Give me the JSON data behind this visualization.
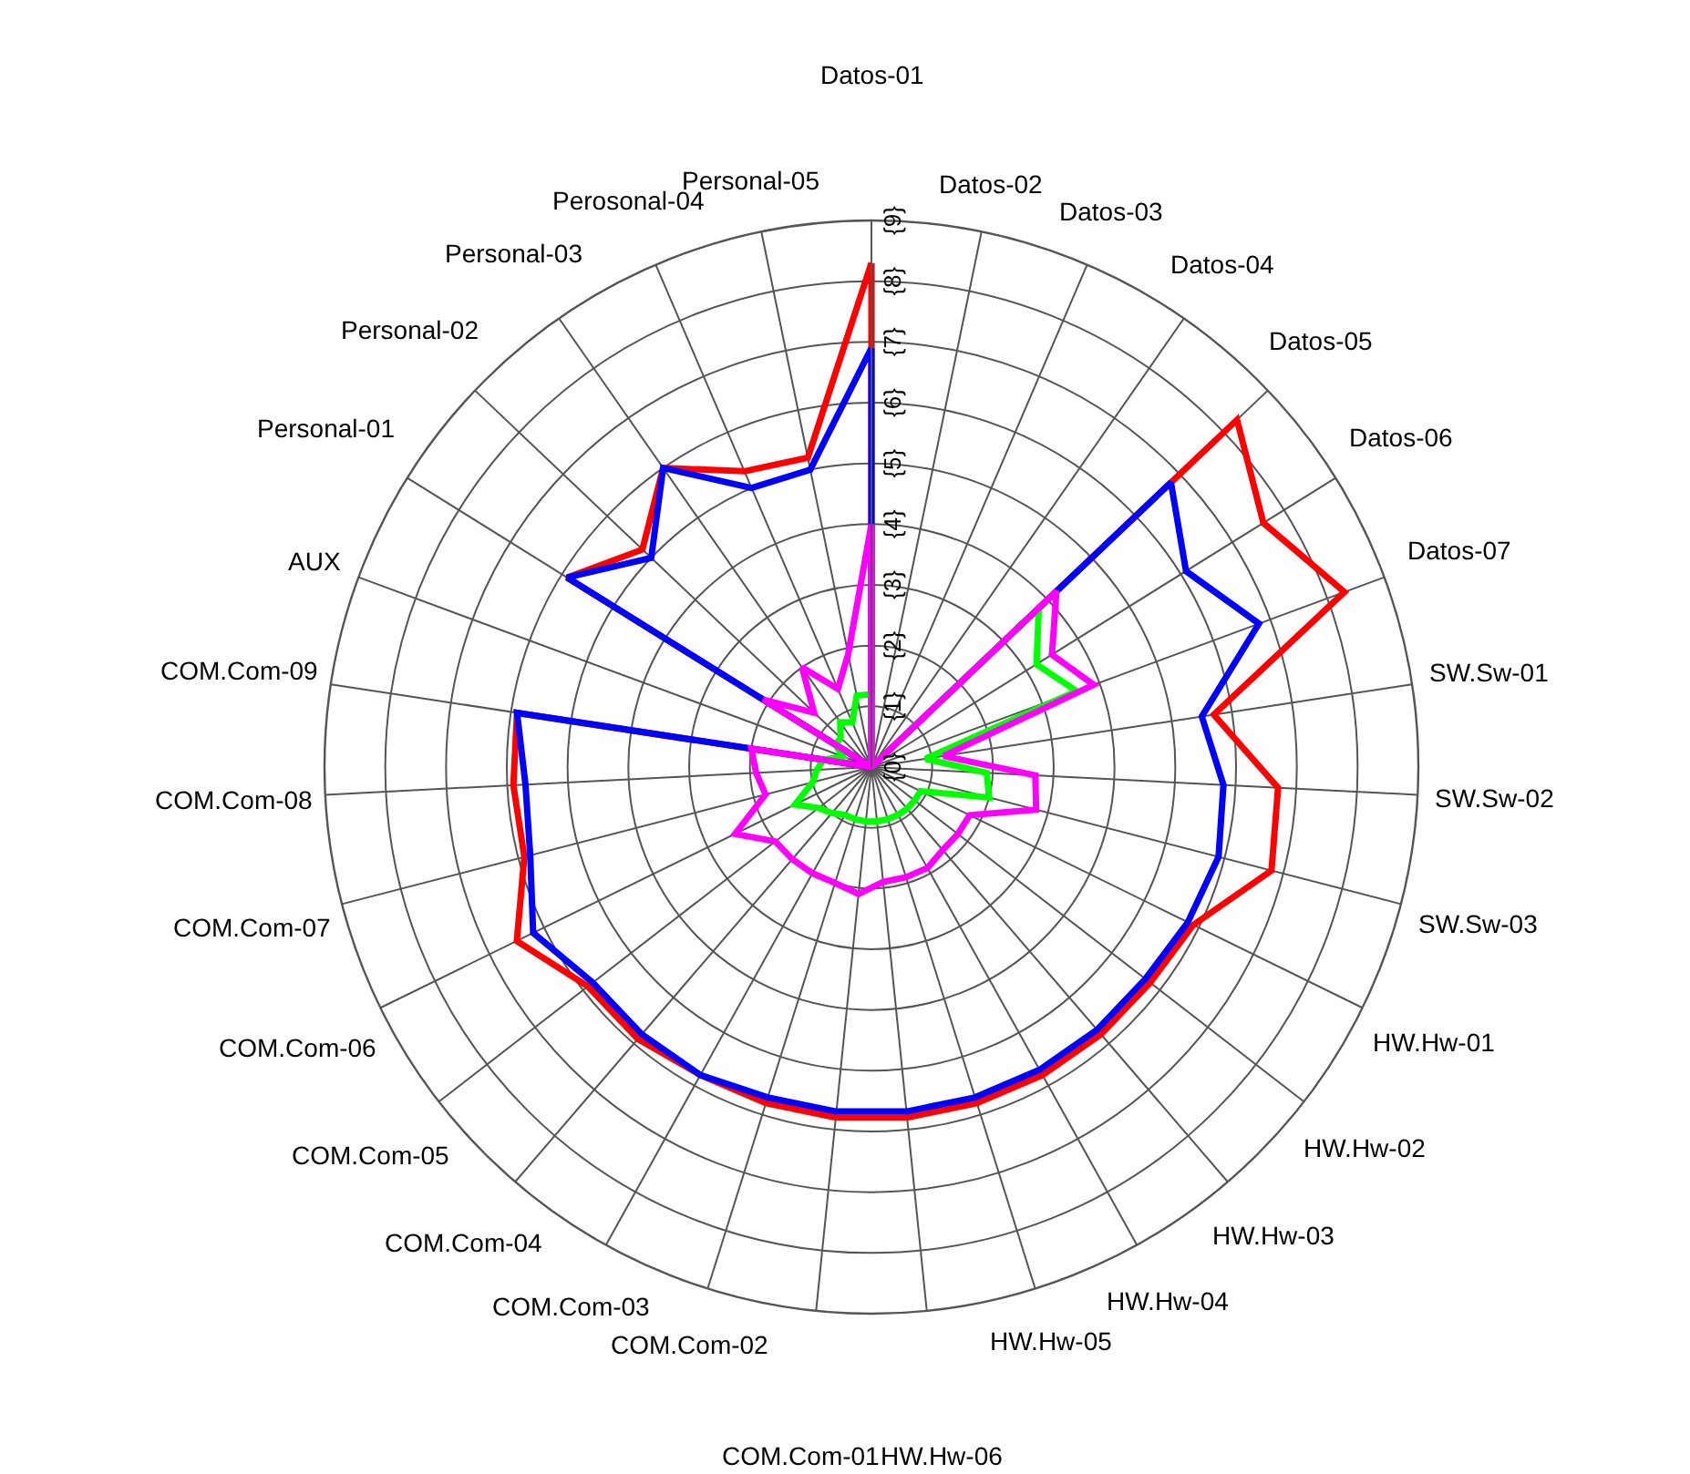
{
  "chart_data": {
    "type": "radar",
    "categories": [
      "Datos-01",
      "Datos-02",
      "Datos-03",
      "Datos-04",
      "Datos-05",
      "Datos-06",
      "Datos-07",
      "SW.Sw-01",
      "SW.Sw-02",
      "SW.Sw-03",
      "HW.Hw-01",
      "HW.Hw-02",
      "HW.Hw-03",
      "HW.Hw-04",
      "HW.Hw-05",
      "HW.Hw-06",
      "COM.Com-01",
      "COM.Com-02",
      "COM.Com-03",
      "COM.Com-04",
      "COM.Com-05",
      "COM.Com-06",
      "COM.Com-07",
      "COM.Com-08",
      "COM.Com-09",
      "AUX",
      "Personal-01",
      "Personal-02",
      "Personal-03",
      "Perosonal-04",
      "Personal-05"
    ],
    "series": [
      {
        "color": "#ff0000",
        "values": [
          8.3,
          0,
          0,
          0,
          8.3,
          7.6,
          8.3,
          5.7,
          6.7,
          6.8,
          5.9,
          5.8,
          5.8,
          5.8,
          5.8,
          5.8,
          5.8,
          5.8,
          5.8,
          5.9,
          5.9,
          6.5,
          5.9,
          5.9,
          5.9,
          0,
          5.9,
          5.2,
          6.0,
          5.3,
          5.2
        ]
      },
      {
        "color": "#0000ff",
        "values": [
          6.9,
          0,
          0,
          0,
          6.8,
          6.1,
          6.8,
          5.5,
          5.8,
          5.9,
          5.8,
          5.7,
          5.7,
          5.7,
          5.7,
          5.7,
          5.7,
          5.7,
          5.8,
          5.8,
          5.8,
          6.2,
          5.8,
          5.7,
          5.9,
          0,
          5.9,
          5.0,
          6.0,
          5.0,
          5.0
        ]
      },
      {
        "color": "#00ff00",
        "values": [
          1.2,
          0,
          0,
          0,
          3.8,
          3.2,
          3.6,
          0.9,
          1.9,
          2.0,
          0.9,
          0.9,
          0.9,
          0.9,
          0.9,
          0.9,
          0.9,
          0.9,
          0.9,
          1.0,
          1.1,
          1.4,
          1.0,
          0.9,
          0.8,
          0.5,
          0.7,
          0.7,
          0.9,
          0.8,
          1.2
        ]
      },
      {
        "color": "#ff00ff",
        "values": [
          4.0,
          0,
          0,
          0,
          4.2,
          3.5,
          3.9,
          1.2,
          2.7,
          2.8,
          1.8,
          1.8,
          1.8,
          1.9,
          1.9,
          1.9,
          2.1,
          2.0,
          2.0,
          2.0,
          2.0,
          2.5,
          1.8,
          1.9,
          2.0,
          0,
          2.1,
          1.3,
          2.0,
          1.4,
          1.9
        ]
      }
    ],
    "ylim": [
      0,
      9
    ],
    "yticks": [
      {
        "value": 0,
        "label": "{0}"
      },
      {
        "value": 1,
        "label": "{1}"
      },
      {
        "value": 2,
        "label": "{2}"
      },
      {
        "value": 3,
        "label": "{3}"
      },
      {
        "value": 4,
        "label": "{4}"
      },
      {
        "value": 5,
        "label": "{5}"
      },
      {
        "value": 6,
        "label": "{6}"
      },
      {
        "value": 7,
        "label": "{7}"
      },
      {
        "value": 8,
        "label": "{8}"
      },
      {
        "value": 9,
        "label": "{9}"
      }
    ],
    "grid": true,
    "marker": "none",
    "line_style": "solid"
  }
}
